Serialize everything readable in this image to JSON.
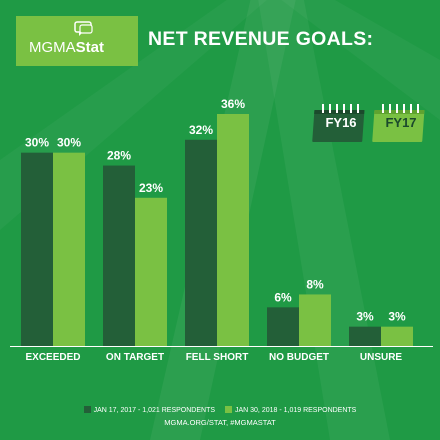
{
  "logo": {
    "text_light": "MGMA",
    "text_bold": "Stat",
    "icon": "speech-bubble-icon"
  },
  "title": "NET REVENUE GOALS:",
  "calendar_labels": {
    "fy16": "FY16",
    "fy17": "FY17"
  },
  "colors": {
    "background": "#1f9a45",
    "series_2017": "#235f38",
    "series_2018": "#7ac143",
    "logo_bg": "#7ac143"
  },
  "chart_data": {
    "type": "bar",
    "title": "NET REVENUE GOALS:",
    "categories": [
      "EXCEEDED",
      "ON TARGET",
      "FELL SHORT",
      "NO BUDGET",
      "UNSURE"
    ],
    "series": [
      {
        "name": "JAN 17, 2017 - 1,021 RESPONDENTS",
        "values": [
          30,
          28,
          32,
          6,
          3
        ],
        "labels": [
          "30%",
          "28%",
          "32%",
          "6%",
          "3%"
        ]
      },
      {
        "name": "JAN 30, 2018 - 1,019 RESPONDENTS",
        "values": [
          30,
          23,
          36,
          8,
          3
        ],
        "labels": [
          "30%",
          "23%",
          "36%",
          "8%",
          "3%"
        ]
      }
    ],
    "ylim": [
      0,
      36
    ],
    "unit": "%",
    "grid": false,
    "legend_position": "bottom"
  },
  "legend": {
    "item1": "JAN 17, 2017 - 1,021 RESPONDENTS",
    "item2": "JAN 30, 2018 - 1,019 RESPONDENTS"
  },
  "footer": "MGMA.ORG/STAT, #MGMASTAT"
}
